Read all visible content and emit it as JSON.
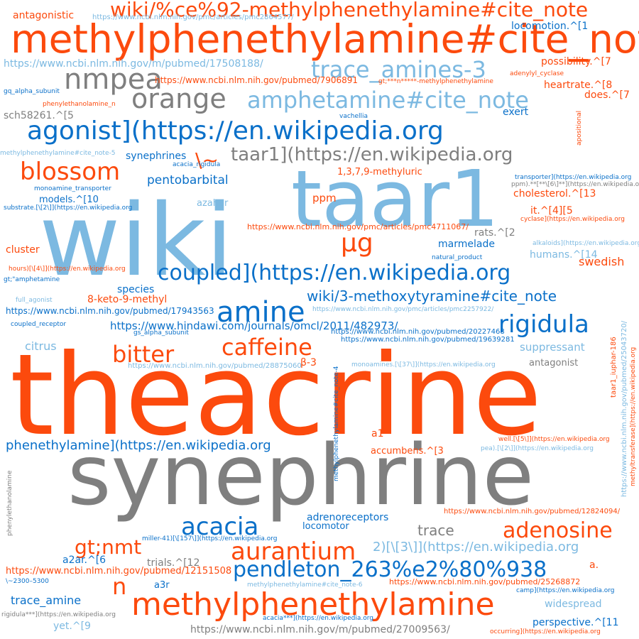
{
  "palette": {
    "orange": "#fc4a0d",
    "gray": "#7f7f7f",
    "lightblue": "#7cb9e1",
    "blue": "#0a70c9"
  },
  "words": [
    {
      "text": "theacrine",
      "color": "orange"
    },
    {
      "text": "synephrine",
      "color": "gray"
    },
    {
      "text": "wiki",
      "color": "lightblue"
    },
    {
      "text": "taar1",
      "color": "lightblue"
    },
    {
      "text": "methylphenethylamine#cite_note",
      "color": "orange"
    },
    {
      "text": "wiki/%ce%92-methylphenethylamine#cite_note",
      "color": "orange"
    },
    {
      "text": "agonist](https://en.wikipedia.org",
      "color": "blue"
    },
    {
      "text": "coupled](https://en.wikipedia.org",
      "color": "blue"
    },
    {
      "text": "methylphenethylamine",
      "color": "orange"
    },
    {
      "text": "pendleton_263%e2%80%938",
      "color": "blue"
    },
    {
      "text": "amphetamine#cite_note",
      "color": "lightblue"
    },
    {
      "text": "trace_amines-3",
      "color": "lightblue"
    },
    {
      "text": "nmpea",
      "color": "gray"
    },
    {
      "text": "orange",
      "color": "gray"
    },
    {
      "text": "taar1](https://en.wikipedia.org",
      "color": "gray"
    },
    {
      "text": "blossom",
      "color": "orange"
    },
    {
      "text": "\\~",
      "color": "orange"
    },
    {
      "text": "amine",
      "color": "blue"
    },
    {
      "text": "rigidula",
      "color": "blue"
    },
    {
      "text": "caffeine",
      "color": "orange"
    },
    {
      "text": "bitter",
      "color": "orange"
    },
    {
      "text": "μg",
      "color": "orange"
    },
    {
      "text": "aurantium",
      "color": "orange"
    },
    {
      "text": "adenosine",
      "color": "orange"
    },
    {
      "text": "acacia",
      "color": "blue"
    },
    {
      "text": "n",
      "color": "orange"
    },
    {
      "text": "gt;nmt",
      "color": "orange"
    },
    {
      "text": "phenethylamine](https://en.wikipedia.org",
      "color": "blue"
    },
    {
      "text": "wiki/3-methoxytyramine#cite_note",
      "color": "blue"
    },
    {
      "text": "2)[\\[3\\]](https://en.wikipedia.org",
      "color": "lightblue"
    },
    {
      "text": "trace",
      "color": "gray"
    },
    {
      "text": "https://www.hindawi.com/journals/omcl/2011/482973/",
      "color": "blue"
    },
    {
      "text": "https://www.ncbi.nlm.nih.gov/m/pubmed/17508188/",
      "color": "lightblue"
    },
    {
      "text": "https://www.ncbi.nlm.nih.gov/m/pubmed/27009563/",
      "color": "gray"
    },
    {
      "text": "https://www.ncbi.nlm.nih.gov/pubmed/12151508",
      "color": "orange"
    },
    {
      "text": "https://www.ncbi.nlm.nih.gov/pubmed/17943563",
      "color": "blue"
    },
    {
      "text": "https://www.ncbi.nlm.nih.gov/pubmed/7906891",
      "color": "orange"
    },
    {
      "text": "https://www.ncbi.nlm.nih.gov/pmc/articles/pmc2864577/",
      "color": "lightblue"
    },
    {
      "text": "https://www.ncbi.nlm.nih.gov/pmc/articles/pmc4711067/",
      "color": "orange"
    },
    {
      "text": "https://www.ncbi.nlm.nih.gov/pmc/articles/pmc2257922/",
      "color": "lightblue"
    },
    {
      "text": "https://www.ncbi.nlm.nih.gov/pubmed/20227468",
      "color": "blue"
    },
    {
      "text": "https://www.ncbi.nlm.nih.gov/pubmed/19639281",
      "color": "blue"
    },
    {
      "text": "https://www.ncbi.nlm.nih.gov/pubmed/28875060",
      "color": "lightblue"
    },
    {
      "text": "https://www.ncbi.nlm.nih.gov/pubmed/12824094/",
      "color": "orange"
    },
    {
      "text": "https://www.ncbi.nlm.nih.gov/pubmed/25268872",
      "color": "orange"
    },
    {
      "text": "antagonistic",
      "color": "orange"
    },
    {
      "text": "locomotion.^[1",
      "color": "blue"
    },
    {
      "text": "possibility.^[7",
      "color": "orange"
    },
    {
      "text": "adenylyl_cyclase",
      "color": "orange"
    },
    {
      "text": "heartrate.^[8",
      "color": "orange"
    },
    {
      "text": "does.^[7",
      "color": "orange"
    },
    {
      "text": "gq_alpha_subunit",
      "color": "blue"
    },
    {
      "text": "phenylethanolamine_n",
      "color": "orange"
    },
    {
      "text": "gt;***n*****-methylphenethylamine",
      "color": "orange"
    },
    {
      "text": "sch58261.^[5",
      "color": "gray"
    },
    {
      "text": "exert",
      "color": "blue"
    },
    {
      "text": "vachellia",
      "color": "blue"
    },
    {
      "text": "methylphenethylamine#cite_note-5",
      "color": "lightblue"
    },
    {
      "text": "acacia_rigidula",
      "color": "blue"
    },
    {
      "text": "synephrines",
      "color": "blue"
    },
    {
      "text": "pentobarbital",
      "color": "blue"
    },
    {
      "text": "1,3,7,9-methyluric",
      "color": "orange"
    },
    {
      "text": "transporter](https://en.wikipedia.org",
      "color": "blue"
    },
    {
      "text": "ppm).**[**\\[6\\]**](https://en.wikipedia.org",
      "color": "gray"
    },
    {
      "text": "monoamine_transporter",
      "color": "blue"
    },
    {
      "text": "ppm",
      "color": "orange"
    },
    {
      "text": "cholesterol.^[13",
      "color": "orange"
    },
    {
      "text": "models.^[10",
      "color": "blue"
    },
    {
      "text": "azahar",
      "color": "lightblue"
    },
    {
      "text": "substrate.[\\[2\\]](https://en.wikipedia.org",
      "color": "blue"
    },
    {
      "text": "it.^[4][5",
      "color": "orange"
    },
    {
      "text": "cyclase](https://en.wikipedia.org",
      "color": "orange"
    },
    {
      "text": "rats.^[2",
      "color": "gray"
    },
    {
      "text": "alkaloids](https://en.wikipedia.org",
      "color": "lightblue"
    },
    {
      "text": "marmelade",
      "color": "blue"
    },
    {
      "text": "natural_product",
      "color": "blue"
    },
    {
      "text": "cluster",
      "color": "orange"
    },
    {
      "text": "humans.^[14",
      "color": "lightblue"
    },
    {
      "text": "swedish",
      "color": "orange"
    },
    {
      "text": "hours)[\\[4\\]](https://en.wikipedia.org",
      "color": "orange"
    },
    {
      "text": "gt;\"amphetamine",
      "color": "blue"
    },
    {
      "text": "species",
      "color": "blue"
    },
    {
      "text": "8-keto-9-methyl",
      "color": "orange"
    },
    {
      "text": "full_agonist",
      "color": "lightblue"
    },
    {
      "text": "coupled_receptor",
      "color": "blue"
    },
    {
      "text": "gs_alpha_subunit",
      "color": "blue"
    },
    {
      "text": "citrus",
      "color": "lightblue"
    },
    {
      "text": "suppressant",
      "color": "lightblue"
    },
    {
      "text": "antagonist",
      "color": "gray"
    },
    {
      "text": "monoamines.[\\[37\\]](https://en.wikipedia.org",
      "color": "lightblue"
    },
    {
      "text": "β-3",
      "color": "orange"
    },
    {
      "text": "a1",
      "color": "orange"
    },
    {
      "text": "well.[\\[5\\]](https://en.wikipedia.org",
      "color": "orange"
    },
    {
      "text": "pea).[\\[2\\]](https://en.wikipedia.org",
      "color": "lightblue"
    },
    {
      "text": "accumbens.^[3",
      "color": "orange"
    },
    {
      "text": "adrenoreceptors",
      "color": "blue"
    },
    {
      "text": "locomotor",
      "color": "blue"
    },
    {
      "text": "miller-41)[\\[157\\]](https://en.wikipedia.org",
      "color": "blue"
    },
    {
      "text": "a2ar.^[6",
      "color": "blue"
    },
    {
      "text": "trials.^[12",
      "color": "gray"
    },
    {
      "text": "a.",
      "color": "orange"
    },
    {
      "text": "\\~2300–5300",
      "color": "blue"
    },
    {
      "text": "a3r",
      "color": "blue"
    },
    {
      "text": "methylphenethylamine#cite_note-6",
      "color": "lightblue"
    },
    {
      "text": "camp](https://en.wikipedia.org",
      "color": "blue"
    },
    {
      "text": "trace_amine",
      "color": "blue"
    },
    {
      "text": "widespread",
      "color": "lightblue"
    },
    {
      "text": "rigidula***](https://en.wikipedia.org",
      "color": "gray"
    },
    {
      "text": "acacia***](https://en.wikipedia.org",
      "color": "blue"
    },
    {
      "text": "yet.^[9",
      "color": "lightblue"
    },
    {
      "text": "perspective.^[11",
      "color": "blue"
    },
    {
      "text": "occurring](https://en.wikipedia.org",
      "color": "orange"
    },
    {
      "text": "apositional",
      "color": "orange"
    },
    {
      "text": "methylphenethylamine#cite_note-4",
      "color": "blue"
    },
    {
      "text": "taar1_iuphar-186",
      "color": "orange"
    },
    {
      "text": "https://www.ncbi.nlm.nih.gov/pubmed/25043720/",
      "color": "lightblue"
    },
    {
      "text": "methyltransferase](https://en.wikipedia.org",
      "color": "orange"
    },
    {
      "text": "phenylethanolamine",
      "color": "gray"
    }
  ]
}
